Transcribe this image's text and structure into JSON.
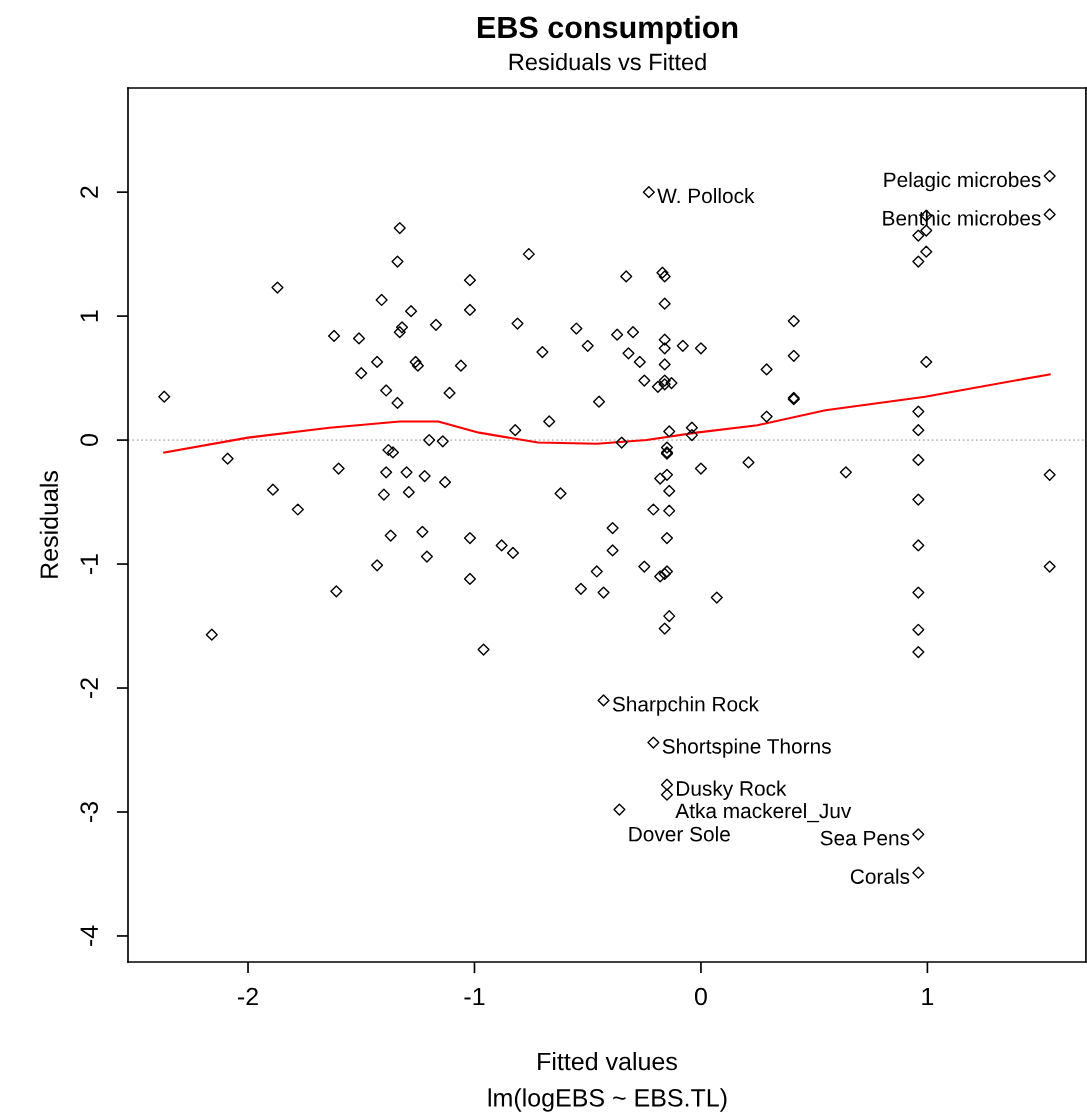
{
  "chart_data": {
    "type": "scatter",
    "title": "EBS consumption",
    "subtitle": "Residuals vs Fitted",
    "xlabel": "Fitted values",
    "ylabel": "Residuals",
    "xlim": [
      -2.53,
      1.7
    ],
    "ylim": [
      -4.21,
      2.84
    ],
    "xticks": [
      -2,
      -1,
      0,
      1
    ],
    "yticks": [
      -4,
      -3,
      -2,
      -1,
      0,
      1,
      2
    ],
    "grid": false,
    "legend": false,
    "series": [
      {
        "color": "#000000",
        "marker": "diamond",
        "x": [
          -2.37,
          -2.09,
          -1.87,
          -1.89,
          -1.78,
          -1.62,
          -1.6,
          -1.61,
          -2.16,
          -1.51,
          -1.5,
          -1.43,
          -1.41,
          -1.43,
          -1.4,
          -1.39,
          -1.38,
          -1.37,
          -1.39,
          -1.36,
          -1.34,
          -1.34,
          -1.33,
          -1.33,
          -1.32,
          -1.3,
          -1.29,
          -1.28,
          -1.26,
          -1.25,
          -1.23,
          -1.22,
          -1.21,
          -1.2,
          -1.17,
          -1.14,
          -1.13,
          -1.11,
          -1.06,
          -1.02,
          -1.02,
          -1.02,
          -1.02,
          -0.96,
          -0.88,
          -0.83,
          -0.82,
          -0.81,
          -0.76,
          -0.7,
          -0.67,
          -0.62,
          -0.55,
          -0.53,
          -0.5,
          -0.46,
          -0.45,
          -0.43,
          -0.39,
          -0.39,
          -0.37,
          -0.35,
          -0.33,
          -0.32,
          -0.3,
          -0.27,
          -0.25,
          -0.25,
          -0.21,
          -0.19,
          -0.18,
          -0.18,
          -0.17,
          -0.16,
          -0.16,
          -0.16,
          -0.16,
          -0.16,
          -0.16,
          -0.16,
          -0.15,
          -0.15,
          -0.15,
          -0.15,
          -0.15,
          -0.15,
          -0.16,
          -0.16,
          -0.14,
          -0.14,
          -0.14,
          -0.14,
          -0.13,
          -0.08,
          -0.04,
          -0.04,
          0.0,
          0.0,
          0.07,
          0.21,
          0.29,
          0.29,
          0.41,
          0.41,
          0.41,
          0.41,
          0.64,
          0.96,
          0.96,
          0.995,
          0.995,
          0.995,
          0.995,
          0.96,
          0.96,
          0.96,
          0.96,
          0.96,
          0.96,
          0.96,
          0.96,
          0.96,
          0.96,
          1.54,
          1.54,
          1.54,
          1.54,
          -0.23,
          -0.43,
          -0.21,
          -0.15,
          -0.15,
          -0.36
        ],
        "values": [
          0.35,
          -0.15,
          1.23,
          -0.4,
          -0.56,
          0.84,
          -0.23,
          -1.22,
          -1.57,
          0.82,
          0.54,
          0.63,
          1.13,
          -1.01,
          -0.44,
          0.4,
          -0.08,
          -0.77,
          -0.26,
          -0.1,
          0.3,
          1.44,
          1.71,
          0.87,
          0.91,
          -0.26,
          -0.42,
          1.04,
          0.63,
          0.6,
          -0.74,
          -0.29,
          -0.94,
          0.0,
          0.93,
          -0.01,
          -0.34,
          0.38,
          0.6,
          1.29,
          1.05,
          -0.79,
          -1.12,
          -1.69,
          -0.85,
          -0.91,
          0.08,
          0.94,
          1.5,
          0.71,
          0.15,
          -0.43,
          0.9,
          -1.2,
          0.76,
          -1.06,
          0.31,
          -1.23,
          -0.71,
          -0.89,
          0.85,
          -0.02,
          1.32,
          0.7,
          0.87,
          0.63,
          0.48,
          -1.02,
          -0.56,
          0.43,
          -1.1,
          -0.31,
          1.35,
          1.32,
          1.1,
          0.81,
          0.74,
          0.61,
          0.48,
          0.45,
          -0.06,
          -0.1,
          -0.11,
          -0.28,
          -0.79,
          -1.06,
          -1.08,
          -1.52,
          -1.42,
          0.07,
          -0.41,
          -0.57,
          0.46,
          0.76,
          0.1,
          0.04,
          0.74,
          -0.23,
          -1.27,
          -0.18,
          0.57,
          0.19,
          0.96,
          0.68,
          0.34,
          0.33,
          -0.26,
          1.65,
          1.44,
          1.69,
          1.52,
          1.81,
          0.63,
          0.23,
          0.08,
          -0.16,
          -0.48,
          -0.85,
          -1.23,
          -1.53,
          -1.71,
          -3.18,
          -3.49,
          2.13,
          1.82,
          -0.28,
          -1.02,
          2.0,
          -2.1,
          -2.44,
          -2.78,
          -2.86,
          -2.98
        ]
      },
      {
        "type": "line",
        "color": "#ff0000",
        "x": [
          -2.37,
          -2.0,
          -1.64,
          -1.33,
          -1.16,
          -0.98,
          -0.72,
          -0.46,
          -0.24,
          -0.02,
          0.25,
          0.55,
          0.99,
          1.54
        ],
        "values": [
          -0.1,
          0.02,
          0.1,
          0.15,
          0.15,
          0.06,
          -0.02,
          -0.03,
          0.0,
          0.06,
          0.12,
          0.24,
          0.35,
          0.53
        ]
      }
    ],
    "ref_lines": [
      {
        "axis": "y",
        "value": 0,
        "color": "#bebebe",
        "line_style": "dotted"
      }
    ],
    "annotations": [
      {
        "text": "W. Pollock",
        "x": -0.23,
        "y": 2.0
      },
      {
        "text": "Pelagic microbes",
        "x": 1.54,
        "y": 2.13
      },
      {
        "text": "Benthic microbes",
        "x": 1.54,
        "y": 1.82
      },
      {
        "text": "Sharpchin Rock",
        "x": -0.43,
        "y": -2.1
      },
      {
        "text": "Shortspine Thorns",
        "x": -0.21,
        "y": -2.44
      },
      {
        "text": "Dusky Rock",
        "x": -0.15,
        "y": -2.78
      },
      {
        "text": "Atka mackerel_Juv",
        "x": -0.15,
        "y": -2.86
      },
      {
        "text": "Dover Sole",
        "x": -0.36,
        "y": -2.98
      },
      {
        "text": "Sea Pens",
        "x": 0.96,
        "y": -3.18
      },
      {
        "text": "Corals",
        "x": 0.96,
        "y": -3.49
      },
      "lm(logEBS ~ EBS.TL)"
    ]
  }
}
